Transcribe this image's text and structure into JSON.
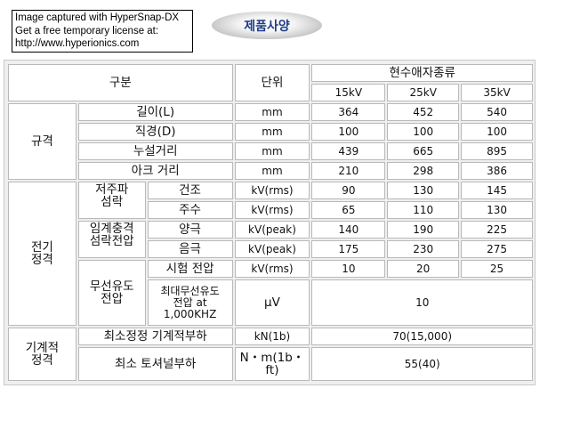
{
  "watermark": {
    "line1": "Image captured with HyperSnap-DX",
    "line2": "Get a free temporary license at:",
    "line3": "http://www.hyperionics.com"
  },
  "title": "제품사양",
  "table": {
    "header": {
      "category": "구분",
      "unit": "단위",
      "type_group": "현수애자종류",
      "col_15": "15kV",
      "col_25": "25kV",
      "col_35": "35kV"
    },
    "spec": {
      "group": "규격",
      "length": {
        "label": "길이(L)",
        "unit": "mm",
        "v15": "364",
        "v25": "452",
        "v35": "540"
      },
      "diameter": {
        "label": "직경(D)",
        "unit": "mm",
        "v15": "100",
        "v25": "100",
        "v35": "100"
      },
      "creepage": {
        "label": "누설거리",
        "unit": "mm",
        "v15": "439",
        "v25": "665",
        "v35": "895"
      },
      "arc": {
        "label": "아크 거리",
        "unit": "mm",
        "v15": "210",
        "v25": "298",
        "v35": "386"
      }
    },
    "electrical": {
      "group": "전기\n정격",
      "low_freq": {
        "label": "저주파\n섬락",
        "dry": {
          "label": "건조",
          "unit": "kV(rms)",
          "v15": "90",
          "v25": "130",
          "v35": "145"
        },
        "wet": {
          "label": "주수",
          "unit": "kV(rms)",
          "v15": "65",
          "v25": "110",
          "v35": "130"
        }
      },
      "impulse": {
        "label": "임계충격\n섬락전압",
        "pos": {
          "label": "양극",
          "unit": "kV(peak)",
          "v15": "140",
          "v25": "190",
          "v35": "225"
        },
        "neg": {
          "label": "음극",
          "unit": "kV(peak)",
          "v15": "175",
          "v25": "230",
          "v35": "275"
        }
      },
      "riv": {
        "label": "무선유도\n전압",
        "test": {
          "label": "시험 전압",
          "unit": "kV(rms)",
          "v15": "10",
          "v25": "20",
          "v35": "25"
        },
        "max": {
          "label": "최대무선유도\n전압 at\n1,000KHZ",
          "unit": "μV",
          "value": "10"
        }
      }
    },
    "mechanical": {
      "group": "기계적\n정격",
      "min_load": {
        "label": "최소정정 기계적부하",
        "unit": "kN(1b)",
        "value": "70(15,000)"
      },
      "torsion": {
        "label": "최소 토셔널부하",
        "unit": "N・m(1b・\nft)",
        "value": "55(40)"
      }
    }
  }
}
